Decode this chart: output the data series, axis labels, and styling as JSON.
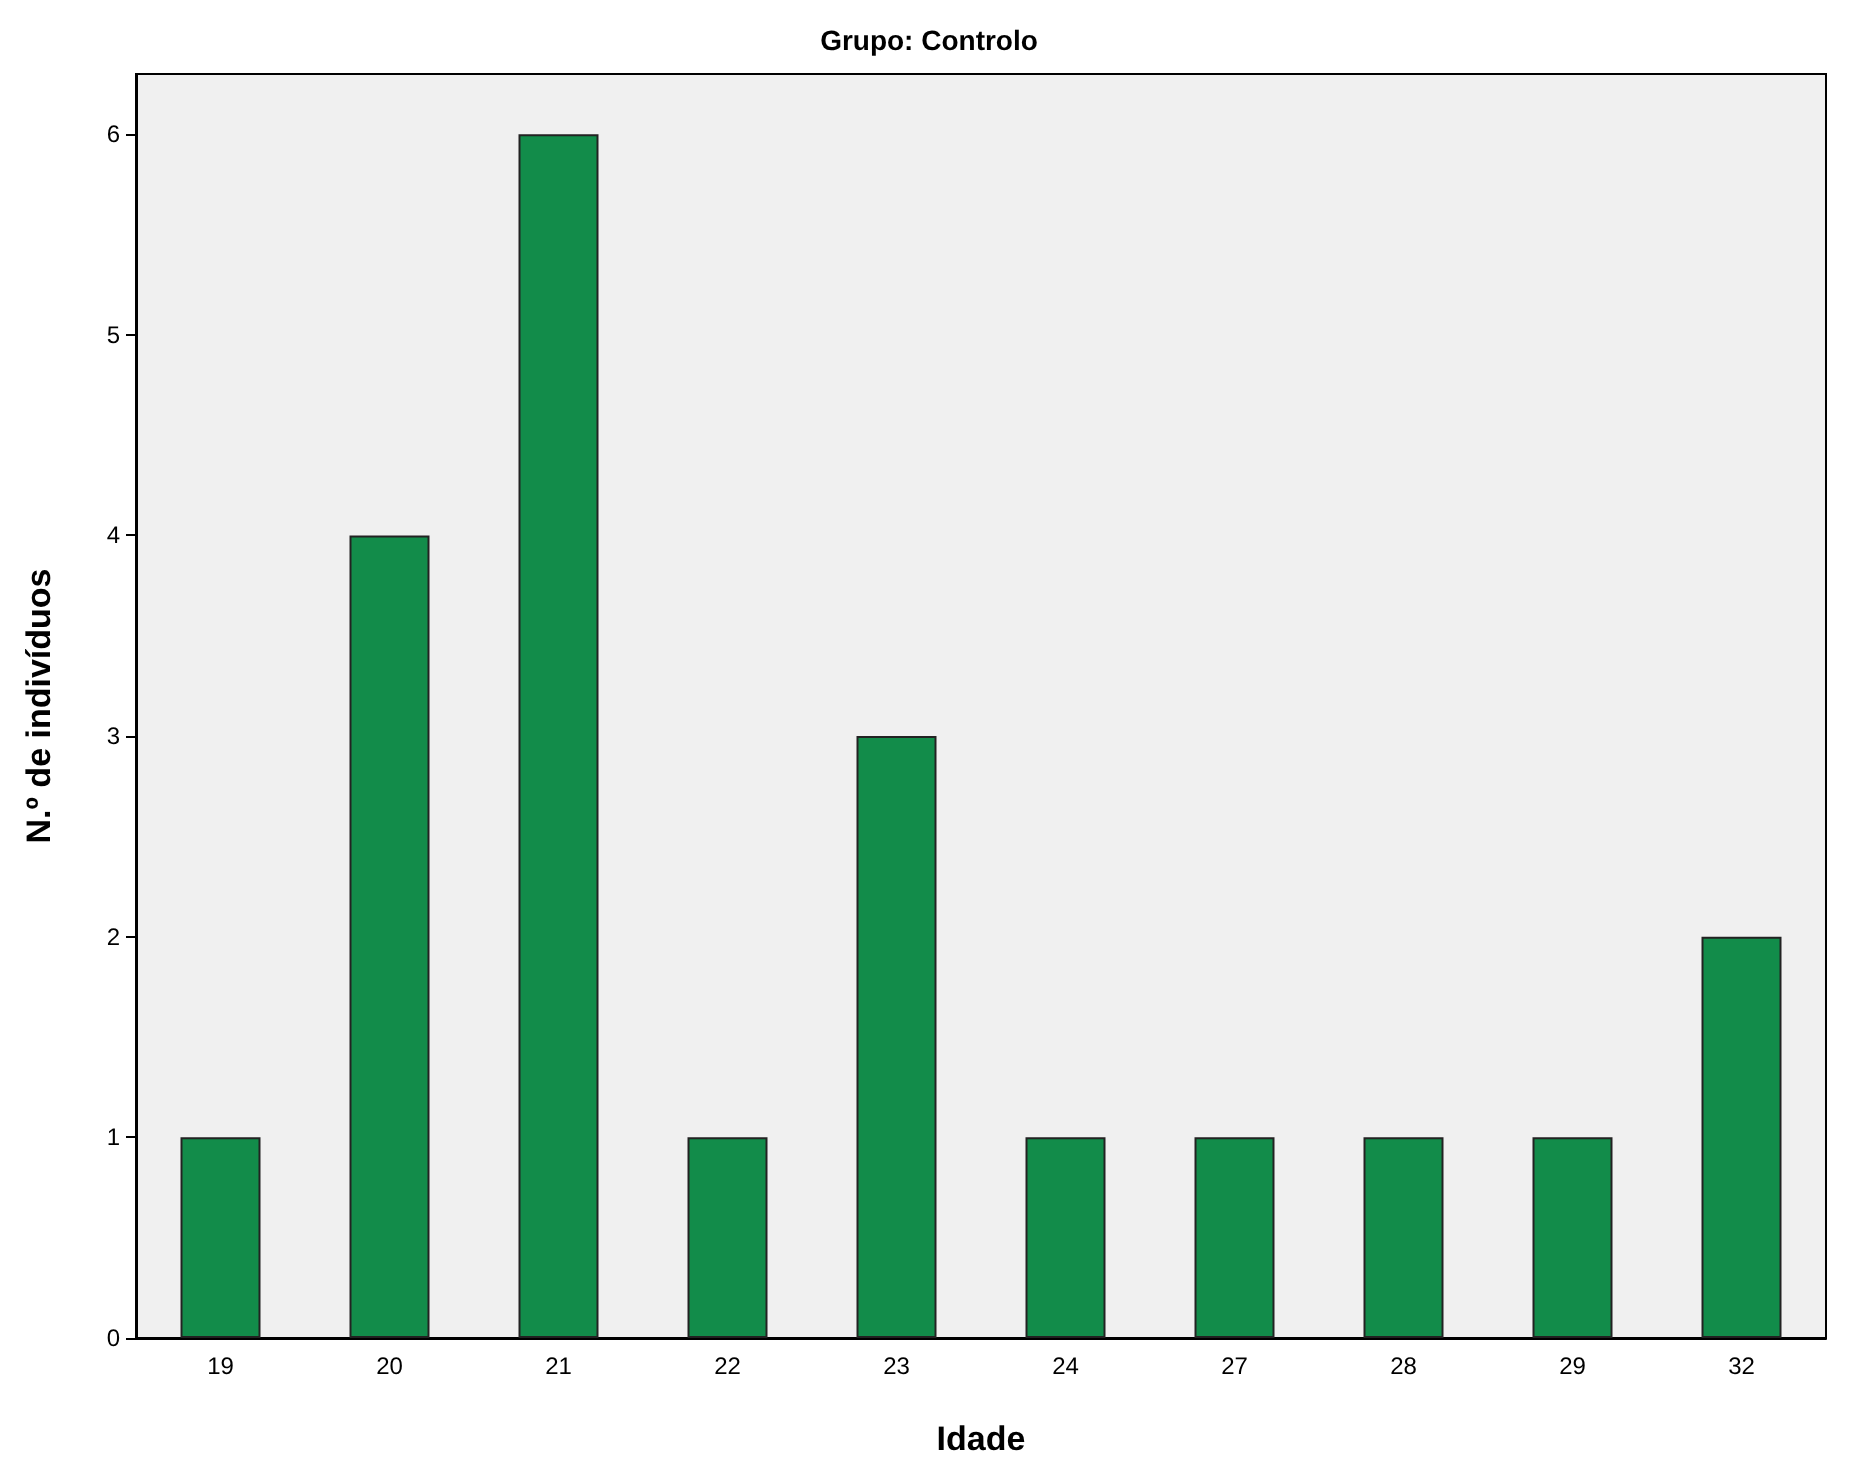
{
  "chart_data": {
    "type": "bar",
    "title": "Grupo: Controlo",
    "xlabel": "Idade",
    "ylabel": "N.º de indivíduos",
    "categories": [
      "19",
      "20",
      "21",
      "22",
      "23",
      "24",
      "27",
      "28",
      "29",
      "32"
    ],
    "values": [
      1,
      4,
      6,
      1,
      3,
      1,
      1,
      1,
      1,
      2
    ],
    "color": "#128c4a",
    "ylim": [
      0,
      6.3
    ],
    "yticks": [
      0,
      1,
      2,
      3,
      4,
      5,
      6
    ]
  }
}
